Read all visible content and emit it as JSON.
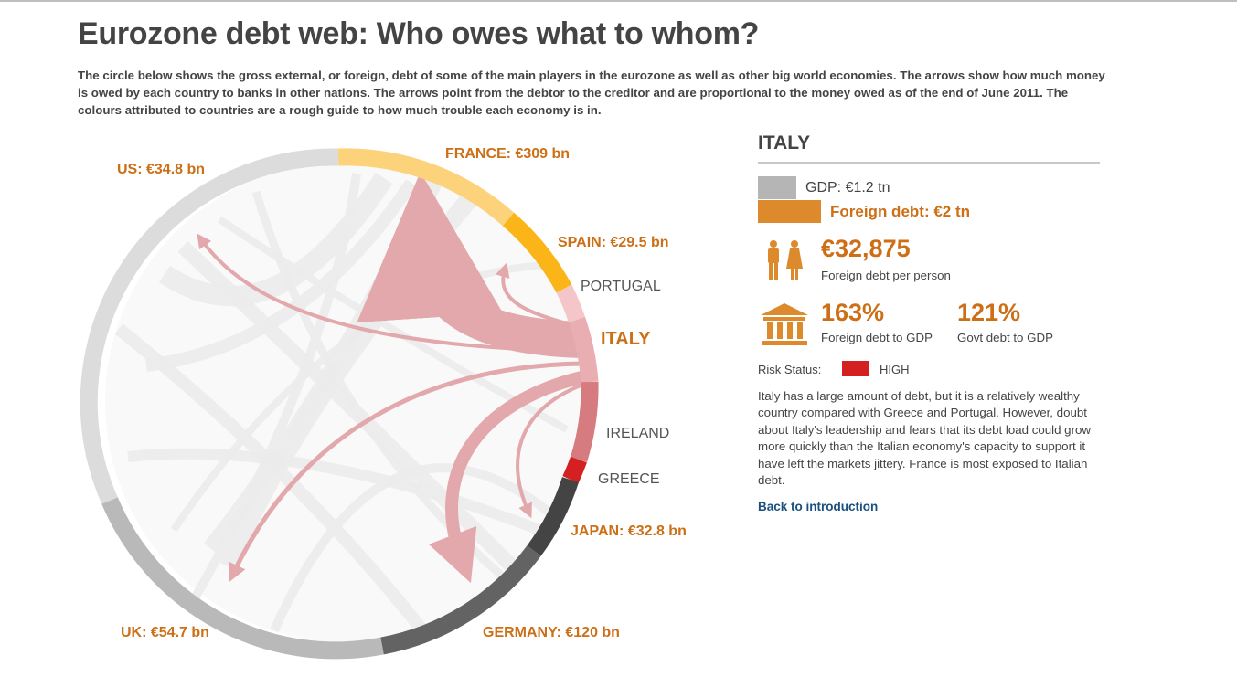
{
  "title": "Eurozone debt web: Who owes what to whom?",
  "intro": "The circle below shows the gross external, or foreign, debt of some of the main players in the eurozone as well as other big world economies. The arrows show how much money is owed by each country to banks in other nations. The arrows point from the debtor to the creditor and are proportional to the money owed as of the end of June 2011. The colours attributed to countries are a rough guide to how much trouble each economy is in.",
  "diagram": {
    "countries": [
      {
        "name": "US",
        "label": "US: €34.8 bn",
        "color": "#dcdcdc"
      },
      {
        "name": "France",
        "label": "FRANCE: €309 bn",
        "color": "#fcd27a"
      },
      {
        "name": "Spain",
        "label": "SPAIN: €29.5 bn",
        "color": "#fbb519"
      },
      {
        "name": "Portugal",
        "label": "PORTUGAL",
        "color": "#f5c6c9"
      },
      {
        "name": "Italy",
        "label": "ITALY",
        "color": "#e9aeb2"
      },
      {
        "name": "Ireland",
        "label": "IRELAND",
        "color": "#d67b7f"
      },
      {
        "name": "Greece",
        "label": "GREECE",
        "color": "#d42020"
      },
      {
        "name": "Japan",
        "label": "JAPAN: €32.8 bn",
        "color": "#444444"
      },
      {
        "name": "Germany",
        "label": "GERMANY: €120 bn",
        "color": "#636363"
      },
      {
        "name": "UK",
        "label": "UK: €54.7 bn",
        "color": "#b9b9b9"
      }
    ],
    "selected": "Italy",
    "flows_from_selected_bn": [
      {
        "to": "France",
        "value": 309
      },
      {
        "to": "Germany",
        "value": 120
      },
      {
        "to": "UK",
        "value": 54.7
      },
      {
        "to": "US",
        "value": 34.8
      },
      {
        "to": "Japan",
        "value": 32.8
      },
      {
        "to": "Spain",
        "value": 29.5
      }
    ]
  },
  "panel": {
    "country": "ITALY",
    "gdp": "GDP: €1.2 tn",
    "foreign_debt": "Foreign debt: €2 tn",
    "per_person_value": "€32,875",
    "per_person_label": "Foreign debt per person",
    "debt_to_gdp_value": "163%",
    "debt_to_gdp_label": "Foreign debt to GDP",
    "govt_debt_value": "121%",
    "govt_debt_label": "Govt debt to GDP",
    "risk_label": "Risk Status:",
    "risk_value": "HIGH",
    "risk_color": "#d42020",
    "description": "Italy has a large amount of debt, but it is a relatively wealthy country compared with Greece and Portugal. However, doubt about Italy's leadership and fears that its debt load could grow more quickly than the Italian economy's capacity to support it have left the markets jittery. France is most exposed to Italian debt.",
    "back_link": "Back to introduction",
    "icons": [
      "people-icon",
      "bank-building-icon"
    ]
  }
}
